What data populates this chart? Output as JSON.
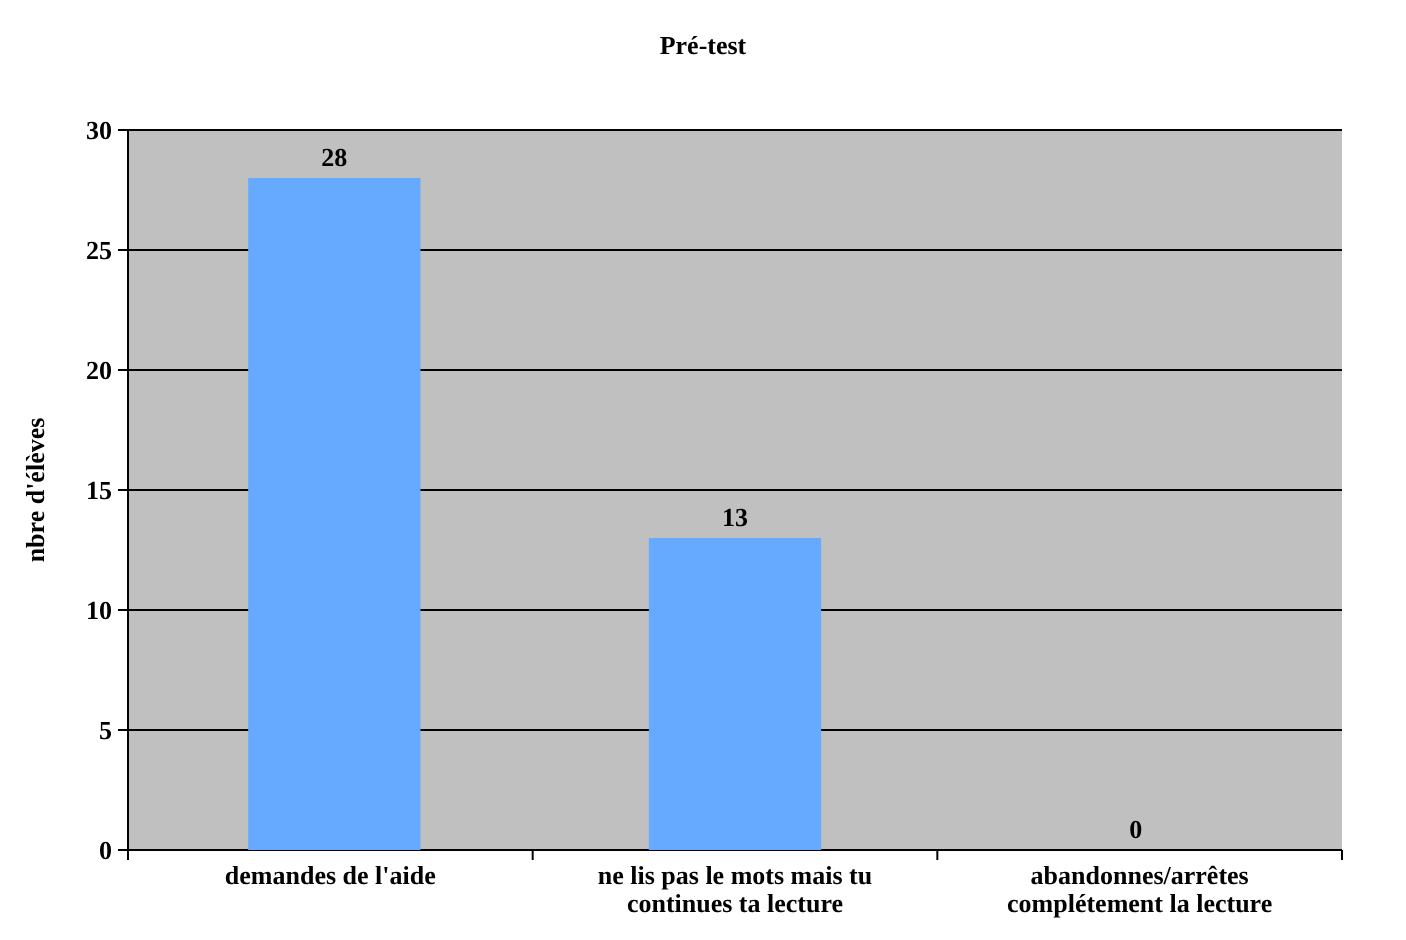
{
  "chart_data": {
    "type": "bar",
    "title": "Pré-test",
    "ylabel": "nbre d'élèves",
    "categories": [
      "demandes de l'aide",
      "ne lis pas le mots mais tu continues ta lecture",
      "abandonnes/arrêtes complétement la lecture"
    ],
    "values": [
      28,
      13,
      0
    ],
    "color": "#66aaff",
    "ylim": [
      0,
      30
    ],
    "yticks": [
      0,
      5,
      10,
      15,
      20,
      25,
      30
    ],
    "grid": "y",
    "data_labels": true
  }
}
